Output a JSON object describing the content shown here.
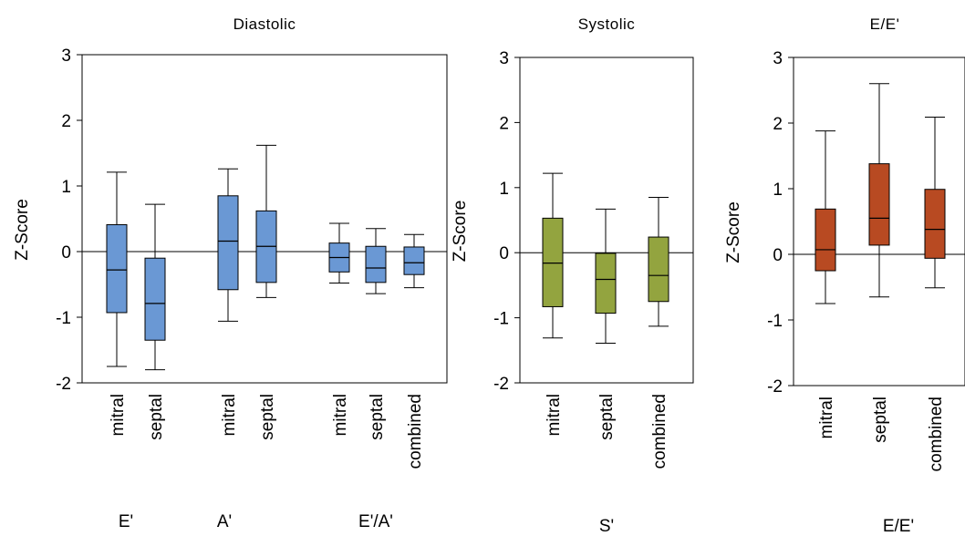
{
  "chart_data": [
    {
      "type": "box",
      "title": "Diastolic",
      "ylabel": "Z-Score",
      "ylim": [
        -2,
        3
      ],
      "yticks": [
        -2,
        -1,
        0,
        1,
        2,
        3
      ],
      "fill_color": "#6a98d4",
      "groups": [
        {
          "label": "E'",
          "members": [
            "mitral",
            "septal"
          ]
        },
        {
          "label": "A'",
          "members": [
            "mitral",
            "septal"
          ]
        },
        {
          "label": "E'/A'",
          "members": [
            "mitral",
            "septal",
            "combined"
          ]
        }
      ],
      "boxes": [
        {
          "category": "mitral",
          "group": "E'",
          "min": -1.75,
          "q1": -0.93,
          "median": -0.28,
          "q3": 0.41,
          "max": 1.21
        },
        {
          "category": "septal",
          "group": "E'",
          "min": -1.8,
          "q1": -1.35,
          "median": -0.79,
          "q3": -0.1,
          "max": 0.72
        },
        {
          "category": "mitral",
          "group": "A'",
          "min": -1.06,
          "q1": -0.58,
          "median": 0.16,
          "q3": 0.85,
          "max": 1.26
        },
        {
          "category": "septal",
          "group": "A'",
          "min": -0.7,
          "q1": -0.47,
          "median": 0.08,
          "q3": 0.62,
          "max": 1.62
        },
        {
          "category": "mitral",
          "group": "E'/A'",
          "min": -0.48,
          "q1": -0.31,
          "median": -0.09,
          "q3": 0.13,
          "max": 0.43
        },
        {
          "category": "septal",
          "group": "E'/A'",
          "min": -0.64,
          "q1": -0.47,
          "median": -0.25,
          "q3": 0.08,
          "max": 0.35
        },
        {
          "category": "combined",
          "group": "E'/A'",
          "min": -0.55,
          "q1": -0.35,
          "median": -0.17,
          "q3": 0.07,
          "max": 0.26
        }
      ]
    },
    {
      "type": "box",
      "title": "Systolic",
      "ylabel": "Z-Score",
      "ylim": [
        -2,
        3
      ],
      "yticks": [
        -2,
        -1,
        0,
        1,
        2,
        3
      ],
      "fill_color": "#93a43f",
      "groups": [
        {
          "label": "S'",
          "members": [
            "mitral",
            "septal",
            "combined"
          ]
        }
      ],
      "boxes": [
        {
          "category": "mitral",
          "group": "S'",
          "min": -1.31,
          "q1": -0.83,
          "median": -0.16,
          "q3": 0.53,
          "max": 1.22
        },
        {
          "category": "septal",
          "group": "S'",
          "min": -1.39,
          "q1": -0.93,
          "median": -0.41,
          "q3": -0.01,
          "max": 0.67
        },
        {
          "category": "combined",
          "group": "S'",
          "min": -1.13,
          "q1": -0.75,
          "median": -0.35,
          "q3": 0.24,
          "max": 0.85
        }
      ]
    },
    {
      "type": "box",
      "title": "E/E'",
      "ylabel": "Z-Score",
      "ylim": [
        -2,
        3
      ],
      "yticks": [
        -2,
        -1,
        0,
        1,
        2,
        3
      ],
      "fill_color": "#b84a22",
      "groups": [
        {
          "label": "E/E'",
          "members": [
            "mitral",
            "septal",
            "combined"
          ]
        }
      ],
      "boxes": [
        {
          "category": "mitral",
          "group": "E/E'",
          "min": -0.75,
          "q1": -0.25,
          "median": 0.07,
          "q3": 0.69,
          "max": 1.88
        },
        {
          "category": "septal",
          "group": "E/E'",
          "min": -0.65,
          "q1": 0.14,
          "median": 0.55,
          "q3": 1.38,
          "max": 2.6
        },
        {
          "category": "combined",
          "group": "E/E'",
          "min": -0.51,
          "q1": -0.06,
          "median": 0.38,
          "q3": 0.99,
          "max": 2.09
        }
      ]
    }
  ]
}
